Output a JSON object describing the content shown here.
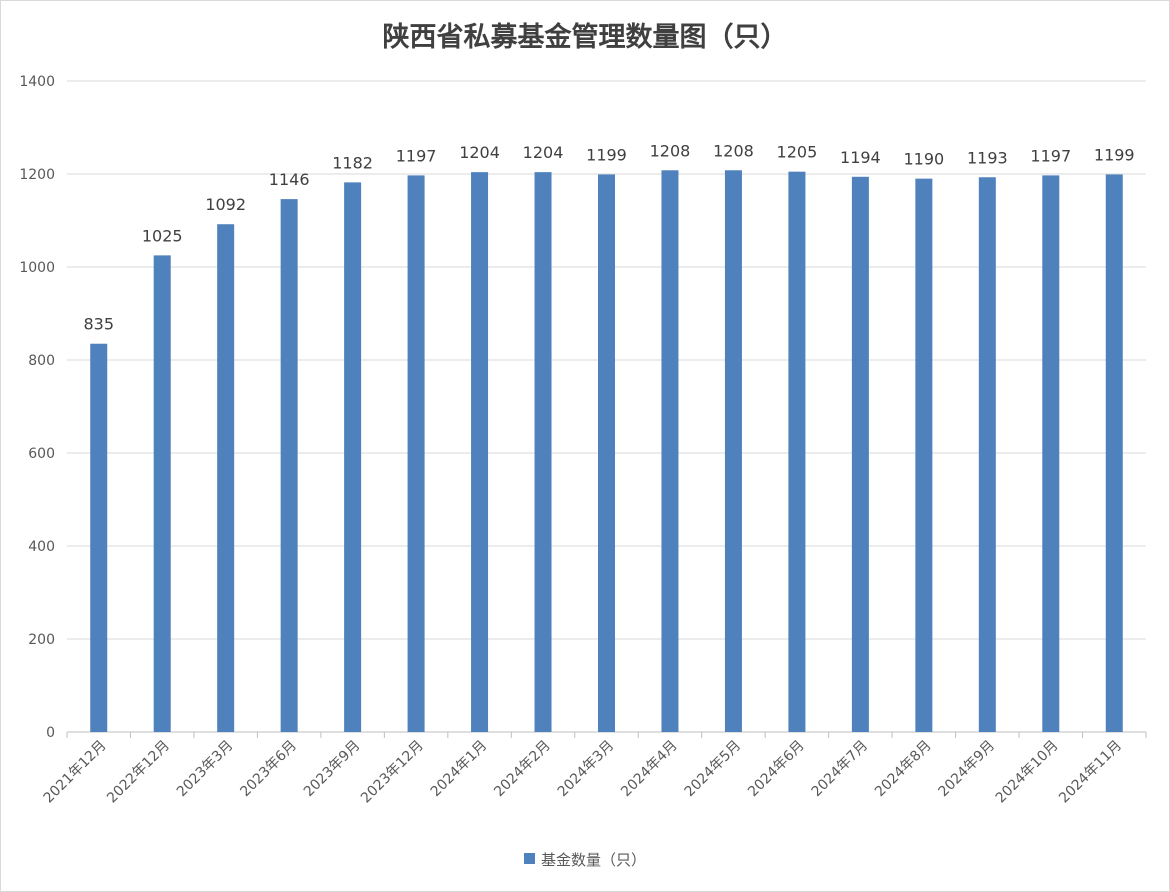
{
  "chart_data": {
    "type": "bar",
    "title": "陕西省私募基金管理数量图（只）",
    "categories": [
      "2021年12月",
      "2022年12月",
      "2023年3月",
      "2023年6月",
      "2023年9月",
      "2023年12月",
      "2024年1月",
      "2024年2月",
      "2024年3月",
      "2024年4月",
      "2024年5月",
      "2024年6月",
      "2024年7月",
      "2024年8月",
      "2024年9月",
      "2024年10月",
      "2024年11月"
    ],
    "series": [
      {
        "name": "基金数量（只）",
        "values": [
          835,
          1025,
          1092,
          1146,
          1182,
          1197,
          1204,
          1204,
          1199,
          1208,
          1208,
          1205,
          1194,
          1190,
          1193,
          1197,
          1199
        ],
        "color": "#4f81bd"
      }
    ],
    "ylim": [
      0,
      1400
    ],
    "yticks": [
      0,
      200,
      400,
      600,
      800,
      1000,
      1200,
      1400
    ],
    "grid": true,
    "legend_position": "bottom",
    "data_labels": true
  }
}
